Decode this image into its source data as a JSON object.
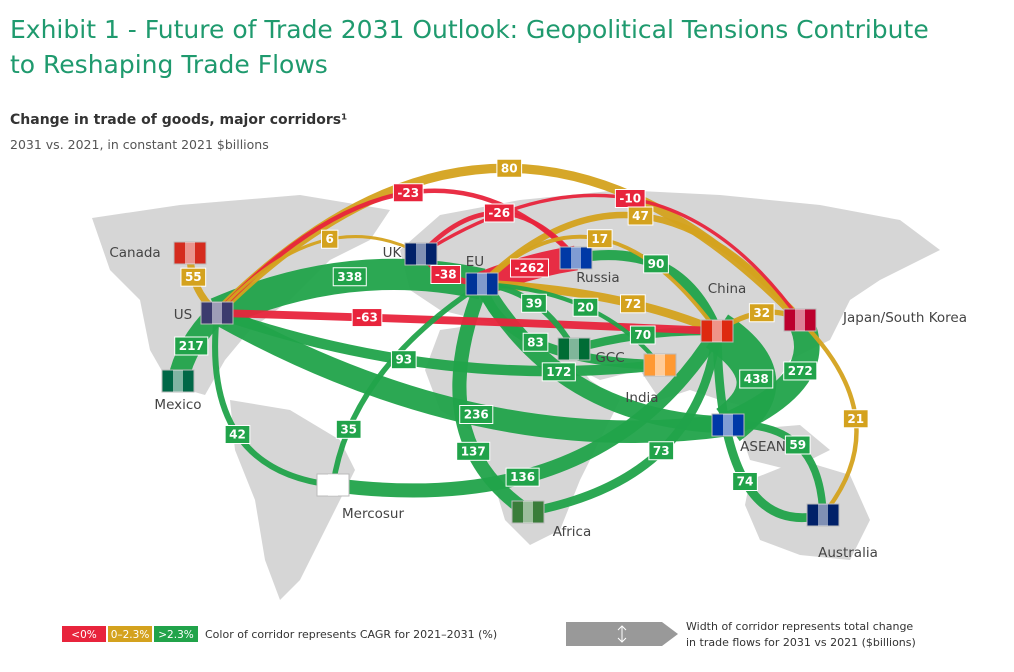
{
  "header": {
    "title_lines": [
      "Exhibit 1 - Future of Trade 2031 Outlook: Geopolitical Tensions Contribute",
      "to Reshaping Trade Flows"
    ],
    "subtitle": "Change in trade of goods, major corridors¹",
    "note": "2031 vs. 2021, in constant 2021 $billions"
  },
  "nodes": [
    {
      "label": "Canada"
    },
    {
      "label": "US"
    },
    {
      "label": "Mexico"
    },
    {
      "label": "UK"
    },
    {
      "label": "EU"
    },
    {
      "label": "Russia"
    },
    {
      "label": "China"
    },
    {
      "label": "Japan/South Korea"
    },
    {
      "label": "GCC"
    },
    {
      "label": "India"
    },
    {
      "label": "ASEAN"
    },
    {
      "label": "Mercosur"
    },
    {
      "label": "Africa"
    },
    {
      "label": "Australia"
    }
  ],
  "corridors": [
    {
      "from": 1,
      "to": 7,
      "value": 80,
      "color": "#d4a21e"
    },
    {
      "from": 3,
      "to": 7,
      "value": -10,
      "color": "#e8243c"
    },
    {
      "from": 1,
      "to": 5,
      "value": -23,
      "color": "#e8243c"
    },
    {
      "from": 3,
      "to": 5,
      "value": -26,
      "color": "#e8243c"
    },
    {
      "from": 4,
      "to": 7,
      "value": 47,
      "color": "#d4a21e"
    },
    {
      "from": 1,
      "to": 3,
      "value": 6,
      "color": "#d4a21e"
    },
    {
      "from": 4,
      "to": 6,
      "value": 17,
      "color": "#d4a21e"
    },
    {
      "from": 0,
      "to": 1,
      "value": 55,
      "color": "#d4a21e"
    },
    {
      "from": 1,
      "to": 4,
      "value": 338,
      "color": "#21a34a"
    },
    {
      "from": 3,
      "to": 4,
      "value": -38,
      "color": "#e8243c"
    },
    {
      "from": 4,
      "to": 5,
      "value": -262,
      "color": "#e8243c"
    },
    {
      "from": 5,
      "to": 6,
      "value": 90,
      "color": "#21a34a"
    },
    {
      "from": 4,
      "to": 6,
      "value": 72,
      "color": "#d4a21e"
    },
    {
      "from": 6,
      "to": 7,
      "value": 32,
      "color": "#d4a21e"
    },
    {
      "from": 1,
      "to": 6,
      "value": -63,
      "color": "#e8243c"
    },
    {
      "from": 4,
      "to": 8,
      "value": 39,
      "color": "#21a34a"
    },
    {
      "from": 4,
      "to": 9,
      "value": 20,
      "color": "#21a34a"
    },
    {
      "from": 4,
      "to": 9,
      "value": 83,
      "color": "#21a34a"
    },
    {
      "from": 8,
      "to": 6,
      "value": 70,
      "color": "#21a34a"
    },
    {
      "from": 1,
      "to": 2,
      "value": 217,
      "color": "#21a34a"
    },
    {
      "from": 1,
      "to": 9,
      "value": 93,
      "color": "#21a34a"
    },
    {
      "from": 1,
      "to": 10,
      "value": 236,
      "color": "#21a34a"
    },
    {
      "from": 4,
      "to": 10,
      "value": 172,
      "color": "#21a34a"
    },
    {
      "from": 6,
      "to": 10,
      "value": 438,
      "color": "#21a34a"
    },
    {
      "from": 7,
      "to": 10,
      "value": 272,
      "color": "#21a34a"
    },
    {
      "from": 1,
      "to": 11,
      "value": 42,
      "color": "#21a34a"
    },
    {
      "from": 11,
      "to": 4,
      "value": 35,
      "color": "#21a34a"
    },
    {
      "from": 4,
      "to": 12,
      "value": 137,
      "color": "#21a34a"
    },
    {
      "from": 11,
      "to": 6,
      "value": 136,
      "color": "#21a34a"
    },
    {
      "from": 12,
      "to": 6,
      "value": 73,
      "color": "#21a34a"
    },
    {
      "from": 10,
      "to": 13,
      "value": 59,
      "color": "#21a34a"
    },
    {
      "from": 7,
      "to": 13,
      "value": 21,
      "color": "#d4a21e"
    },
    {
      "from": 6,
      "to": 13,
      "value": 74,
      "color": "#21a34a"
    }
  ],
  "legend": {
    "items": [
      {
        "label": "<0%",
        "color": "#e8243c"
      },
      {
        "label": "0–2.3%",
        "color": "#d4a21e"
      },
      {
        "label": ">2.3%",
        "color": "#21a34a"
      }
    ],
    "color_note": "Color of corridor represents CAGR for 2021–2031 (%)",
    "width_note_lines": [
      "Width of corridor represents total change",
      "in trade flows for 2031 vs 2021 ($billions)"
    ]
  }
}
